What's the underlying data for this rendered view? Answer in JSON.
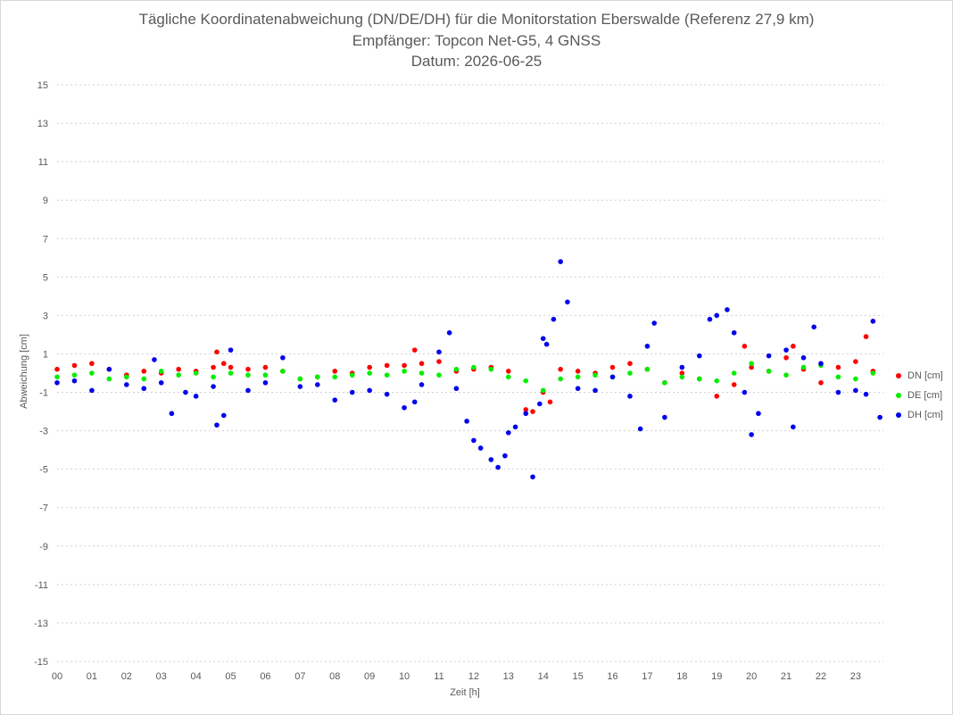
{
  "chart_data": {
    "type": "scatter",
    "title_lines": [
      "Tägliche Koordinatenabweichung (DN/DE/DH) für die Monitorstation Eberswalde (Referenz 27,9 km)",
      "Empfänger: Topcon Net-G5, 4 GNSS",
      "Datum: 2026-06-25"
    ],
    "xlabel": "Zeit [h]",
    "ylabel": "Abweichung [cm]",
    "x_ticks": [
      "00",
      "01",
      "02",
      "03",
      "04",
      "05",
      "06",
      "07",
      "08",
      "09",
      "10",
      "11",
      "12",
      "13",
      "14",
      "15",
      "16",
      "17",
      "18",
      "19",
      "20",
      "21",
      "22",
      "23"
    ],
    "xlim": [
      0,
      23.8
    ],
    "ylim": [
      -15,
      15
    ],
    "y_ticks": [
      15,
      13,
      11,
      9,
      7,
      5,
      3,
      1,
      -1,
      -3,
      -5,
      -7,
      -9,
      -11,
      -13,
      -15
    ],
    "grid": "horizontal dotted",
    "legend_position": "right",
    "series": [
      {
        "name": "DN [cm]",
        "color": "#ff0000",
        "x": [
          0.0,
          0.5,
          1.0,
          1.5,
          2.0,
          2.5,
          3.0,
          3.5,
          4.0,
          4.5,
          4.6,
          4.8,
          5.0,
          5.5,
          6.0,
          6.5,
          7.0,
          7.5,
          8.0,
          8.5,
          9.0,
          9.5,
          10.0,
          10.3,
          10.5,
          11.0,
          11.5,
          12.0,
          12.5,
          13.0,
          13.5,
          13.7,
          14.0,
          14.2,
          14.5,
          15.0,
          15.5,
          16.0,
          16.5,
          17.0,
          17.5,
          18.0,
          18.5,
          19.0,
          19.5,
          19.8,
          20.0,
          20.5,
          21.0,
          21.2,
          21.5,
          22.0,
          22.5,
          23.0,
          23.3,
          23.5
        ],
        "values": [
          0.2,
          0.4,
          0.5,
          0.2,
          -0.1,
          0.1,
          0.0,
          0.2,
          0.1,
          0.3,
          1.1,
          0.5,
          0.3,
          0.2,
          0.3,
          0.1,
          -0.3,
          -0.2,
          0.1,
          0.0,
          0.3,
          0.4,
          0.4,
          1.2,
          0.5,
          0.6,
          0.1,
          0.2,
          0.3,
          0.1,
          -1.9,
          -2.0,
          -1.0,
          -1.5,
          0.2,
          0.1,
          0.0,
          0.3,
          0.5,
          0.2,
          -0.5,
          0.0,
          -0.3,
          -1.2,
          -0.6,
          1.4,
          0.3,
          0.1,
          0.8,
          1.4,
          0.2,
          -0.5,
          0.3,
          0.6,
          1.9,
          0.1
        ]
      },
      {
        "name": "DE [cm]",
        "color": "#00ee00",
        "x": [
          0.0,
          0.5,
          1.0,
          1.5,
          2.0,
          2.5,
          3.0,
          3.5,
          4.0,
          4.5,
          5.0,
          5.5,
          6.0,
          6.5,
          7.0,
          7.5,
          8.0,
          8.5,
          9.0,
          9.5,
          10.0,
          10.5,
          11.0,
          11.5,
          12.0,
          12.5,
          13.0,
          13.5,
          14.0,
          14.5,
          15.0,
          15.5,
          16.0,
          16.5,
          17.0,
          17.5,
          18.0,
          18.5,
          19.0,
          19.5,
          20.0,
          20.5,
          21.0,
          21.5,
          22.0,
          22.5,
          23.0,
          23.5
        ],
        "values": [
          -0.2,
          -0.1,
          0.0,
          -0.3,
          -0.2,
          -0.3,
          0.1,
          -0.1,
          0.0,
          -0.2,
          0.0,
          -0.1,
          -0.1,
          0.1,
          -0.3,
          -0.2,
          -0.2,
          -0.1,
          0.0,
          -0.1,
          0.1,
          0.0,
          -0.1,
          0.2,
          0.3,
          0.2,
          -0.2,
          -0.4,
          -0.9,
          -0.3,
          -0.2,
          -0.1,
          -0.2,
          0.0,
          0.2,
          -0.5,
          -0.2,
          -0.3,
          -0.4,
          0.0,
          0.5,
          0.1,
          -0.1,
          0.3,
          0.4,
          -0.2,
          -0.3,
          0.0
        ]
      },
      {
        "name": "DH [cm]",
        "color": "#0000ee",
        "x": [
          0.0,
          0.5,
          1.0,
          1.5,
          2.0,
          2.5,
          2.8,
          3.0,
          3.3,
          3.7,
          4.0,
          4.5,
          4.6,
          4.8,
          5.0,
          5.5,
          6.0,
          6.5,
          7.0,
          7.5,
          8.0,
          8.5,
          9.0,
          9.5,
          10.0,
          10.3,
          10.5,
          11.0,
          11.3,
          11.5,
          11.8,
          12.0,
          12.2,
          12.5,
          12.7,
          12.9,
          13.0,
          13.2,
          13.5,
          13.7,
          13.9,
          14.0,
          14.1,
          14.3,
          14.5,
          14.7,
          15.0,
          15.5,
          16.0,
          16.5,
          16.8,
          17.0,
          17.2,
          17.5,
          18.0,
          18.5,
          18.8,
          19.0,
          19.3,
          19.5,
          19.8,
          20.0,
          20.2,
          20.5,
          21.0,
          21.2,
          21.5,
          21.8,
          22.0,
          22.5,
          23.0,
          23.3,
          23.5,
          23.7
        ],
        "values": [
          -0.5,
          -0.4,
          -0.9,
          0.2,
          -0.6,
          -0.8,
          0.7,
          -0.5,
          -2.1,
          -1.0,
          -1.2,
          -0.7,
          -2.7,
          -2.2,
          1.2,
          -0.9,
          -0.5,
          0.8,
          -0.7,
          -0.6,
          -1.4,
          -1.0,
          -0.9,
          -1.1,
          -1.8,
          -1.5,
          -0.6,
          1.1,
          2.1,
          -0.8,
          -2.5,
          -3.5,
          -3.9,
          -4.5,
          -4.9,
          -4.3,
          -3.1,
          -2.8,
          -2.1,
          -5.4,
          -1.6,
          1.8,
          1.5,
          2.8,
          5.8,
          3.7,
          -0.8,
          -0.9,
          -0.2,
          -1.2,
          -2.9,
          1.4,
          2.6,
          -2.3,
          0.3,
          0.9,
          2.8,
          3.0,
          3.3,
          2.1,
          -1.0,
          -3.2,
          -2.1,
          0.9,
          1.2,
          -2.8,
          0.8,
          2.4,
          0.5,
          -1.0,
          -0.9,
          -1.1,
          2.7,
          -2.3
        ]
      }
    ]
  }
}
